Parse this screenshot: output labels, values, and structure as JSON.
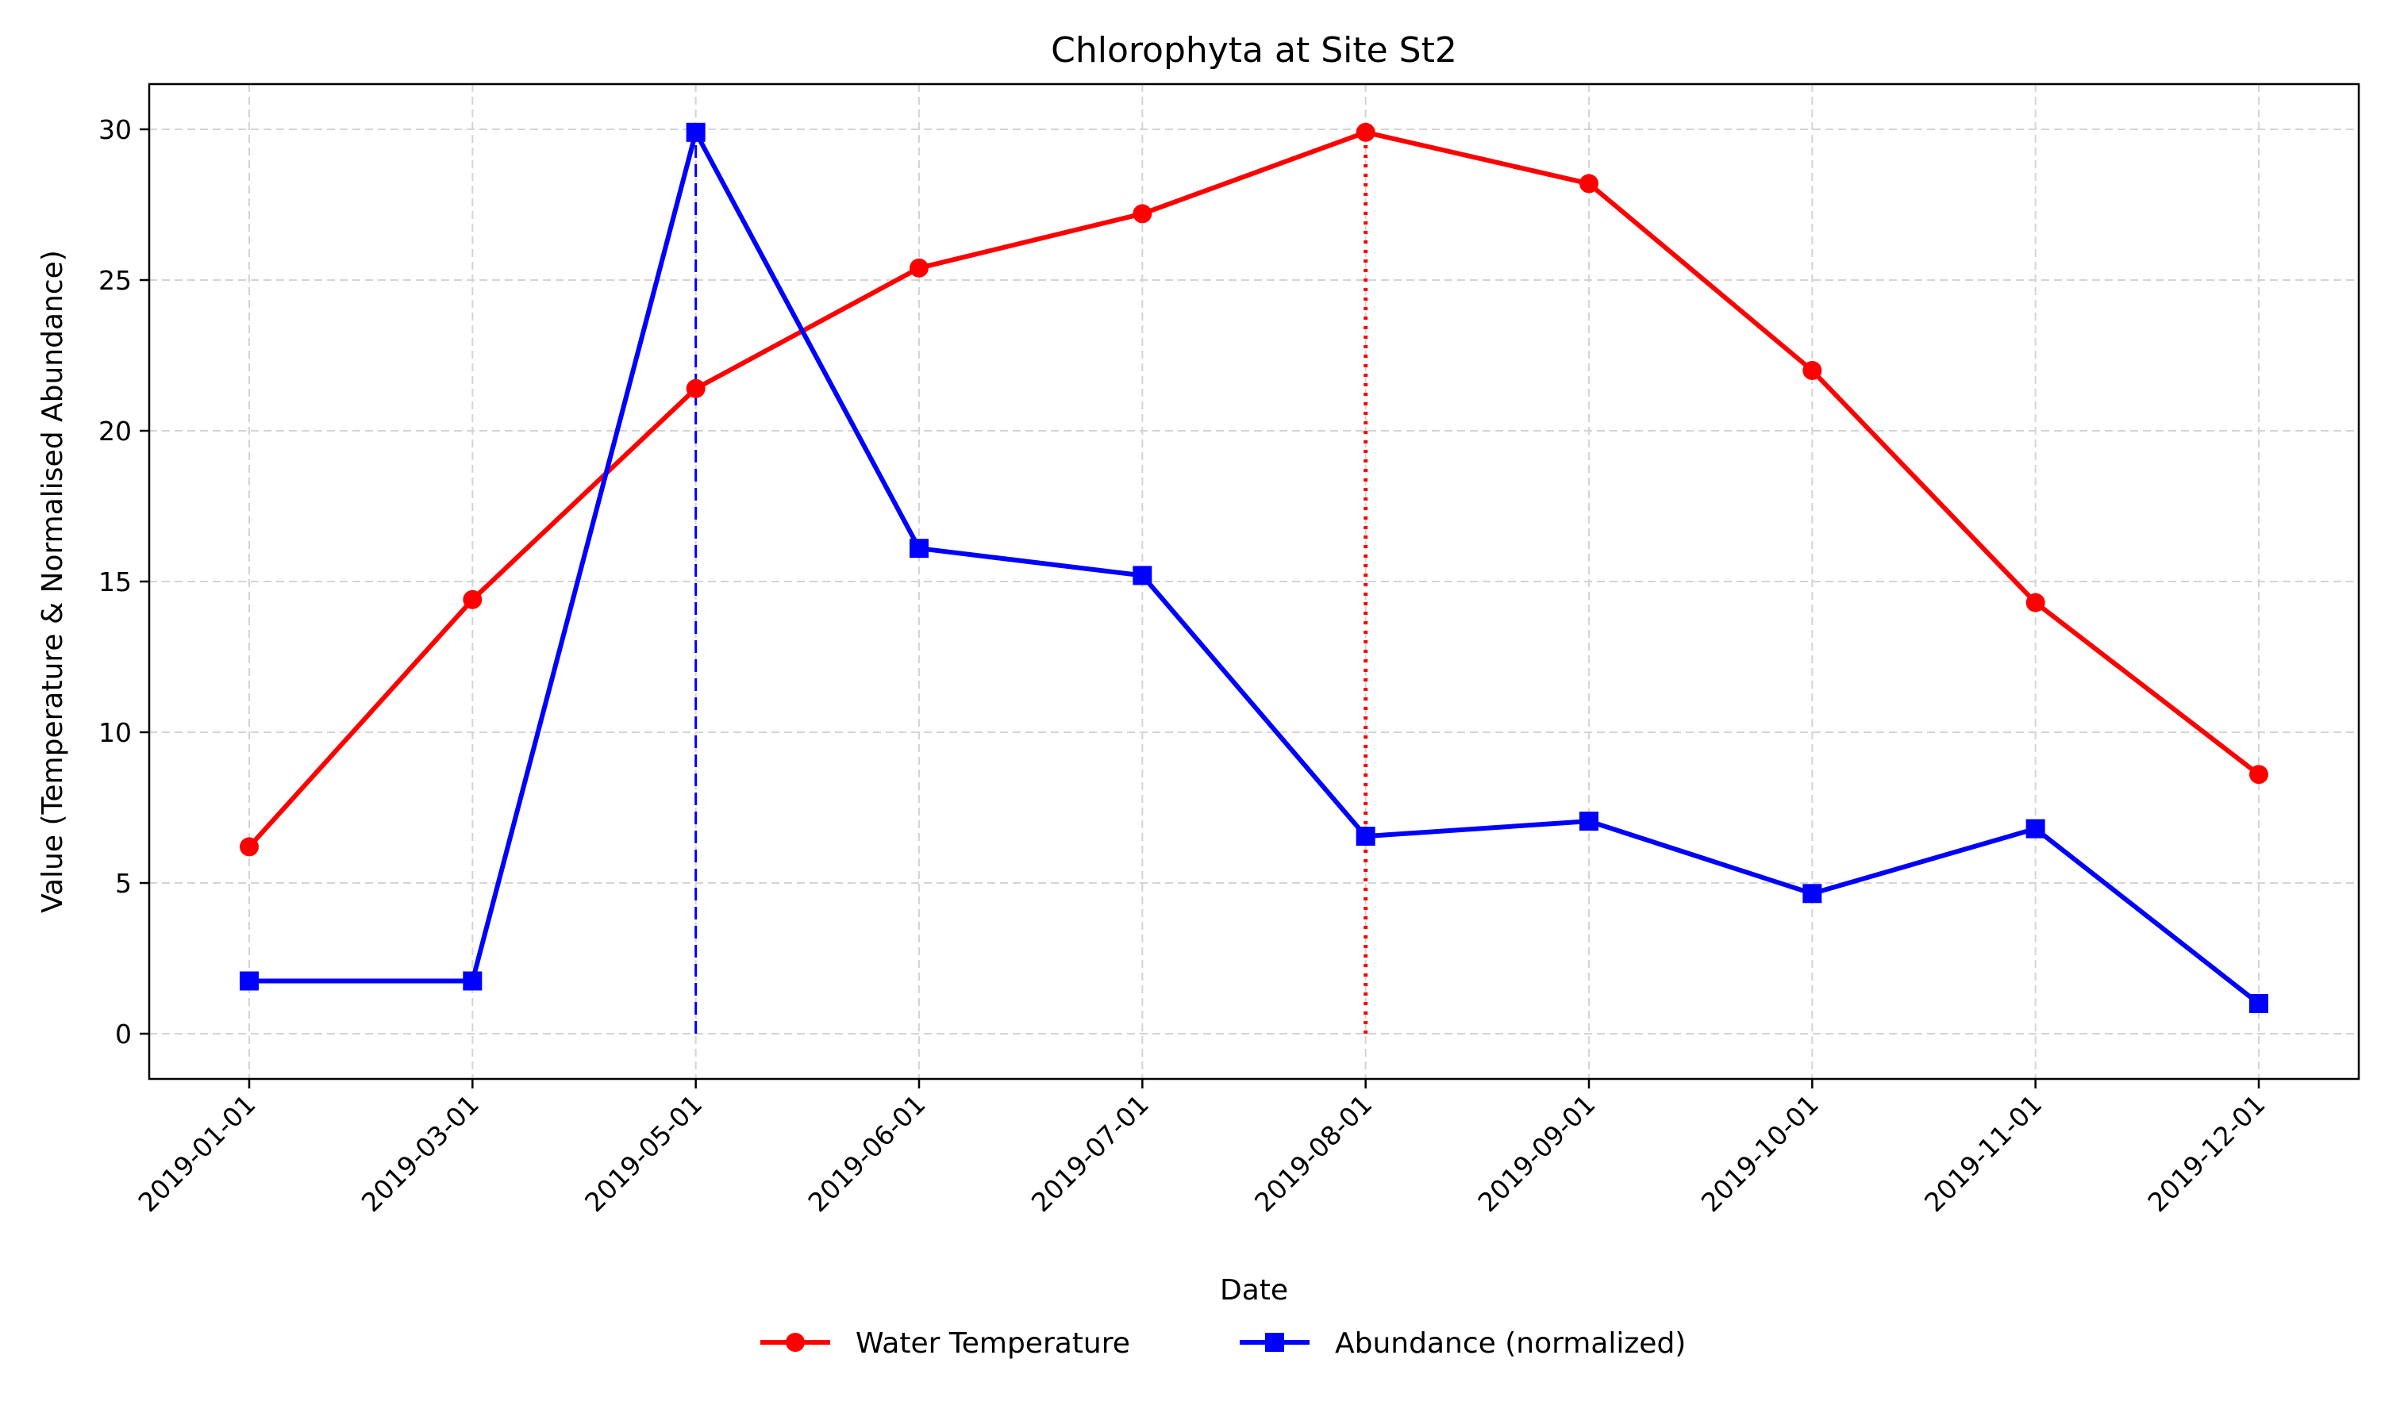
{
  "chart_data": {
    "type": "line",
    "title": "Chlorophyta at Site St2",
    "xlabel": "Date",
    "ylabel": "Value (Temperature & Normalised Abundance)",
    "x": [
      "2019-01-01",
      "2019-03-01",
      "2019-05-01",
      "2019-06-01",
      "2019-07-01",
      "2019-08-01",
      "2019-09-01",
      "2019-10-01",
      "2019-11-01",
      "2019-12-01"
    ],
    "ylim": [
      -1.5,
      31.5
    ],
    "yticks": [
      0,
      5,
      10,
      15,
      20,
      25,
      30
    ],
    "grid": true,
    "legend_position": "bottom-center",
    "series": [
      {
        "name": "Water Temperature",
        "color": "#ff0000",
        "marker": "circle",
        "values": [
          6.2,
          14.4,
          21.4,
          25.4,
          27.2,
          29.9,
          28.2,
          22.0,
          14.3,
          8.6
        ]
      },
      {
        "name": "Abundance (normalized)",
        "color": "#0000ff",
        "marker": "square",
        "values": [
          1.75,
          1.75,
          29.9,
          16.1,
          15.2,
          6.55,
          7.05,
          4.65,
          6.8,
          1.0
        ]
      }
    ],
    "annotations": [
      {
        "type": "vline",
        "x": "2019-05-01",
        "y_from": 0,
        "y_to": 29.9,
        "color": "#0000ff",
        "style": "dashed"
      },
      {
        "type": "vline",
        "x": "2019-08-01",
        "y_from": 0,
        "y_to": 29.9,
        "color": "#ff0000",
        "style": "dotted"
      }
    ]
  }
}
